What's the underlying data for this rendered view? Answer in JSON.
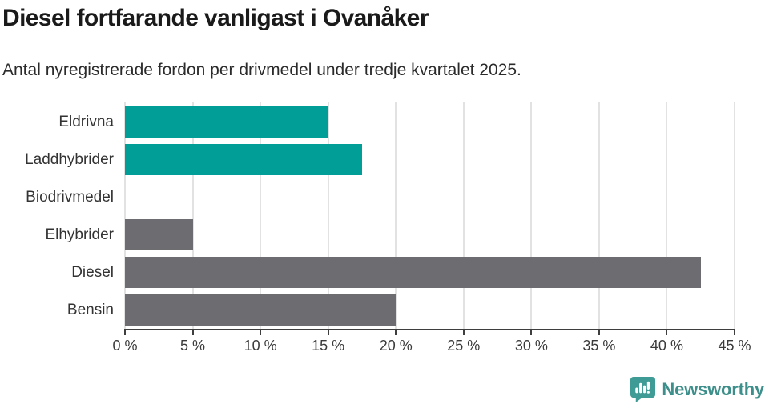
{
  "chart_data": {
    "type": "bar",
    "orientation": "horizontal",
    "title": "Diesel fortfarande vanligast i Ovanåker",
    "subtitle": "Antal nyregistrerade fordon per drivmedel under tredje kvartalet 2025.",
    "categories": [
      "Eldrivna",
      "Laddhybrider",
      "Biodrivmedel",
      "Elhybrider",
      "Diesel",
      "Bensin"
    ],
    "values": [
      15,
      17.5,
      0,
      5,
      42.5,
      20
    ],
    "value_unit": "%",
    "bar_colors": [
      "#009E97",
      "#009E97",
      "#6C6C71",
      "#6C6C71",
      "#6C6C71",
      "#6C6C71"
    ],
    "xlim": [
      0,
      45
    ],
    "x_ticks": [
      0,
      5,
      10,
      15,
      20,
      25,
      30,
      35,
      40,
      45
    ],
    "x_tick_labels": [
      "0 %",
      "5 %",
      "10 %",
      "15 %",
      "20 %",
      "25 %",
      "30 %",
      "35 %",
      "40 %",
      "45 %"
    ],
    "grid": "vertical",
    "legend": "none",
    "ylabel": "",
    "xlabel": ""
  },
  "colors": {
    "bar_teal": "#009E97",
    "bar_gray": "#6C6C71",
    "gridline": "#E2E2E2",
    "axis_line": "#3E3E3E",
    "title_text": "#1A1A1A",
    "label_text": "#333333",
    "brand_teal": "#3C8F8A",
    "brand_icon_teal": "#3F9B95"
  },
  "footer": {
    "brand": "Newsworthy",
    "brand_icon": "newsworthy-speech-bubble-bar-chart-icon"
  }
}
